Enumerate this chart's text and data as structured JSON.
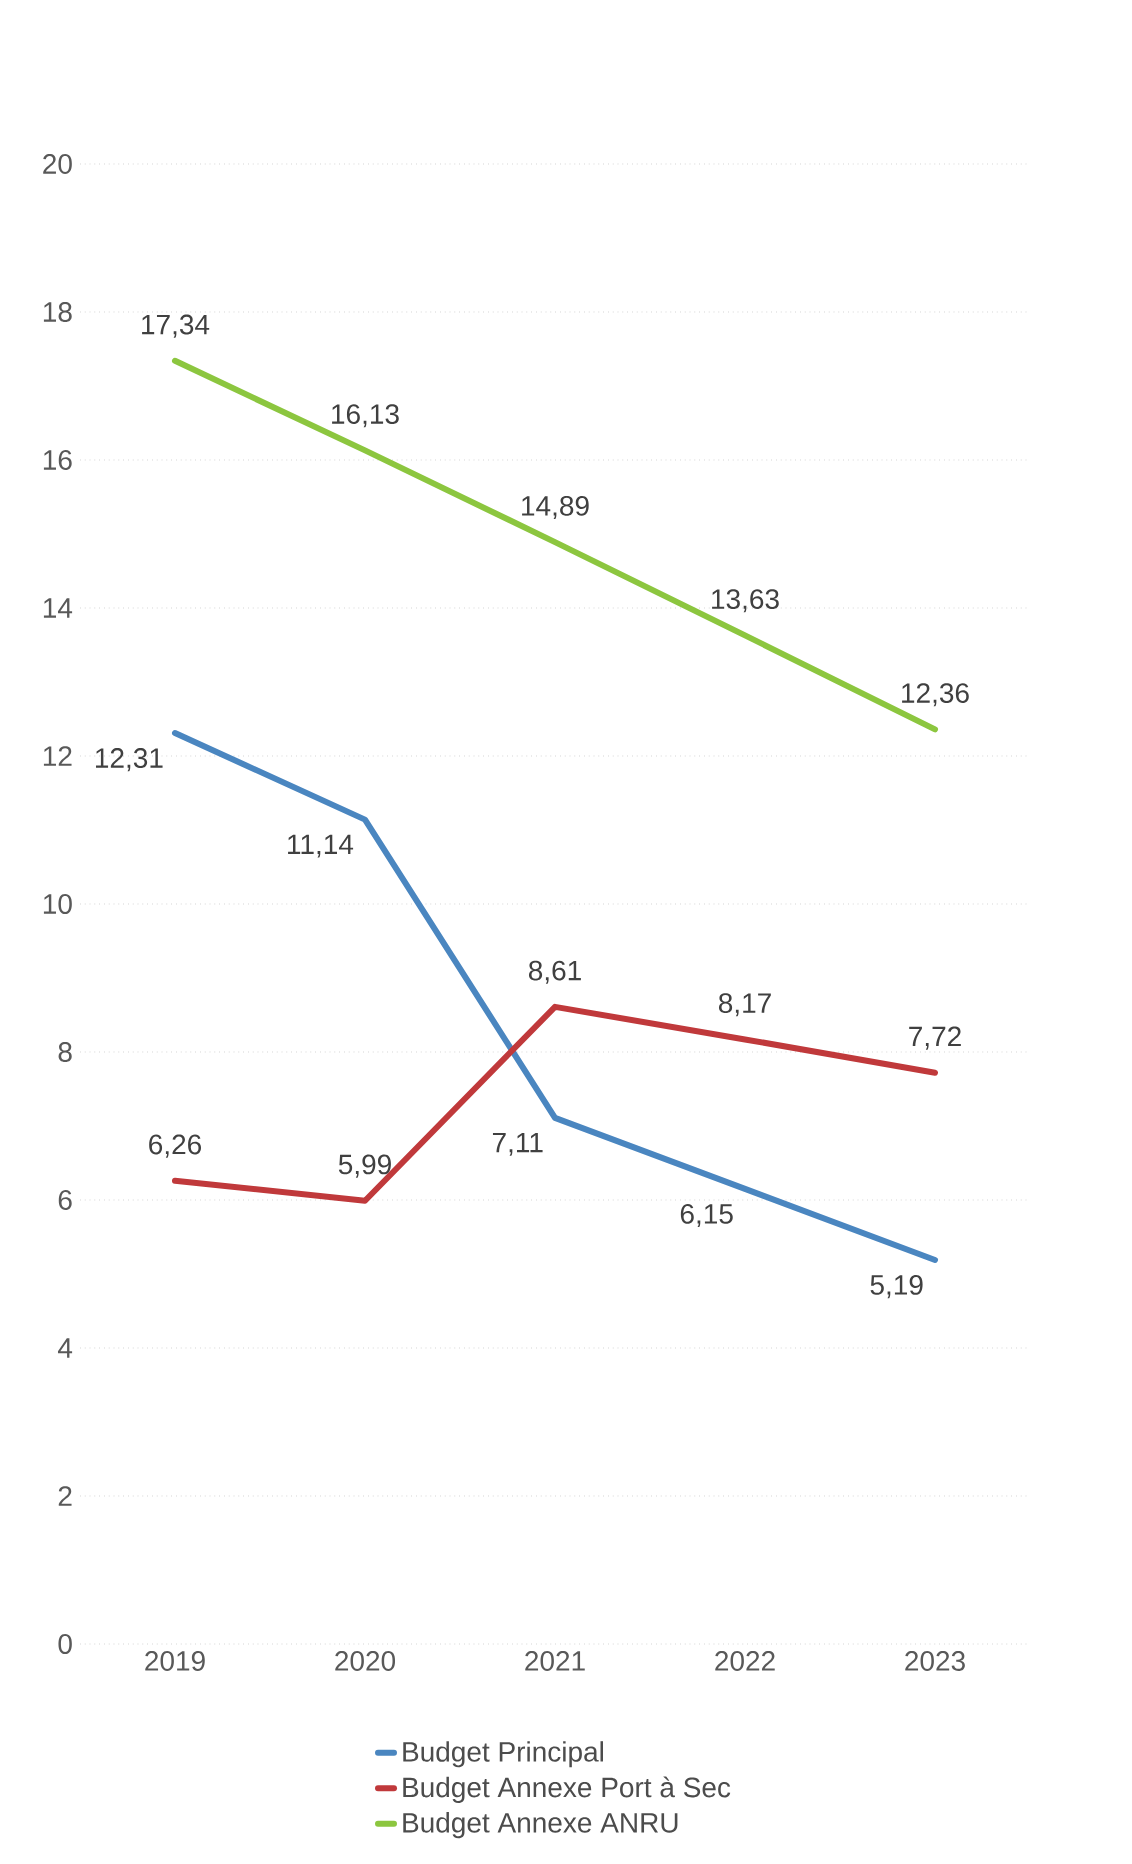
{
  "chart_data": {
    "type": "line",
    "categories": [
      "2019",
      "2020",
      "2021",
      "2022",
      "2023"
    ],
    "series": [
      {
        "name": "Budget Principal",
        "color": "#4a86c0",
        "values": [
          12.31,
          11.14,
          7.11,
          6.15,
          5.19
        ],
        "value_labels": [
          "12,31",
          "11,14",
          "7,11",
          "6,15",
          "5,19"
        ]
      },
      {
        "name": "Budget Annexe Port à Sec",
        "color": "#c0393b",
        "values": [
          6.26,
          5.99,
          8.61,
          8.17,
          7.72
        ],
        "value_labels": [
          "6,26",
          "5,99",
          "8,61",
          "8,17",
          "7,72"
        ]
      },
      {
        "name": "Budget Annexe ANRU",
        "color": "#8cc63f",
        "values": [
          17.34,
          16.13,
          14.89,
          13.63,
          12.36
        ],
        "value_labels": [
          "17,34",
          "16,13",
          "14,89",
          "13,63",
          "12,36"
        ]
      }
    ],
    "ylim": [
      0,
      20
    ],
    "yticks": [
      0,
      2,
      4,
      6,
      8,
      10,
      12,
      14,
      16,
      18,
      20
    ],
    "grid": "y",
    "legend": "bottom",
    "marker": "none",
    "line_style": "solid"
  }
}
